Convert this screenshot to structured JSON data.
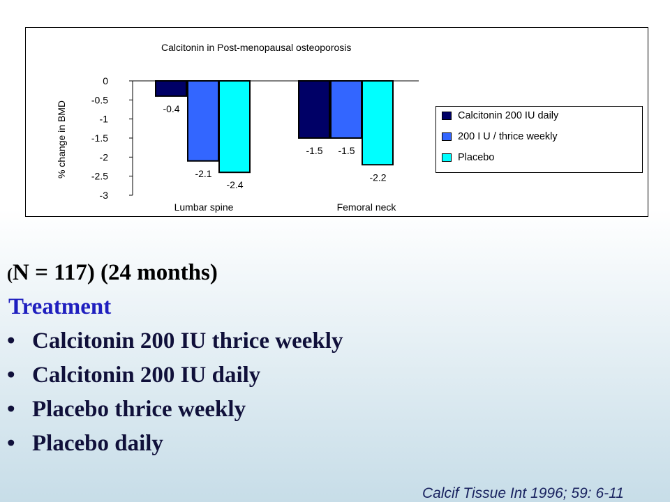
{
  "chart_data": {
    "type": "bar",
    "title": "Calcitonin  in Post-menopausal  osteoporosis",
    "ylabel": "% change  in BMD",
    "xlabel": "",
    "categories": [
      "Lumbar   spine",
      "Femoral  neck"
    ],
    "ylim": [
      -3,
      0
    ],
    "yticks": [
      0,
      -0.5,
      -1,
      -1.5,
      -2,
      -2.5,
      -3
    ],
    "ytick_labels": [
      "0",
      "-0.5",
      "-1",
      "-1.5",
      "-2",
      "-2.5",
      "-3"
    ],
    "grid": false,
    "legend_position": "right",
    "series": [
      {
        "name": "Calcitonin  200  IU daily",
        "color": "#000066",
        "values": [
          -0.4,
          -1.5
        ],
        "labels": [
          "-0.4",
          "-1.5"
        ]
      },
      {
        "name": "200  I U  /  thrice weekly",
        "color": "#3366ff",
        "values": [
          -2.1,
          -1.5
        ],
        "labels": [
          "-2.1",
          "-1.5"
        ]
      },
      {
        "name": "Placebo",
        "color": "#00ffff",
        "values": [
          -2.4,
          -2.2
        ],
        "labels": [
          "-2.4",
          "-2.2"
        ]
      }
    ]
  },
  "slide": {
    "study_paren_open": "(",
    "study_info_rest": "N = 117)    (24 months)",
    "treatment_heading": "Treatment",
    "bullet_symbol": "•",
    "bullets": [
      "Calcitonin 200 IU thrice weekly",
      "Calcitonin 200 IU daily",
      "Placebo thrice weekly",
      "Placebo daily"
    ],
    "citation": "Calcif Tissue Int 1996; 59: 6-11"
  }
}
